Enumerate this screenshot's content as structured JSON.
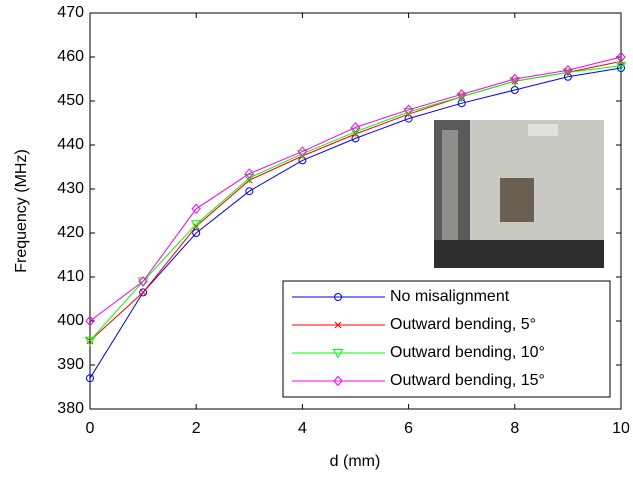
{
  "chart_data": {
    "type": "line",
    "x_label": "d (mm)",
    "y_label": "Frequency (MHz)",
    "x": [
      0,
      1,
      2,
      3,
      4,
      5,
      6,
      7,
      8,
      9,
      10
    ],
    "series": [
      {
        "name": "No misalignment",
        "color": "#0000ff",
        "marker": "circle",
        "values": [
          387,
          406.5,
          420,
          429.5,
          436.5,
          441.5,
          446,
          449.5,
          452.5,
          455.5,
          457.5
        ]
      },
      {
        "name": "Outward bending, 5°",
        "color": "#ff0000",
        "marker": "x",
        "values": [
          395.5,
          406.5,
          421.5,
          432,
          437.5,
          442.5,
          447,
          451,
          454.5,
          456.5,
          459
        ]
      },
      {
        "name": "Outward bending, 10°",
        "color": "#00ff00",
        "marker": "triangle-down",
        "values": [
          395.5,
          409,
          422,
          432.5,
          438,
          443,
          447.5,
          451,
          454.5,
          456.5,
          458
        ]
      },
      {
        "name": "Outward bending, 15°",
        "color": "#ff00ff",
        "marker": "diamond",
        "values": [
          400,
          409,
          425.5,
          433.5,
          438.5,
          444,
          448,
          451.5,
          455,
          457,
          460
        ]
      }
    ],
    "xlim": [
      0,
      10
    ],
    "xticks": [
      0,
      2,
      4,
      6,
      8,
      10
    ],
    "ylim": [
      380,
      470
    ],
    "yticks": [
      380,
      390,
      400,
      410,
      420,
      430,
      440,
      450,
      460,
      470
    ],
    "legend": "lower right"
  }
}
